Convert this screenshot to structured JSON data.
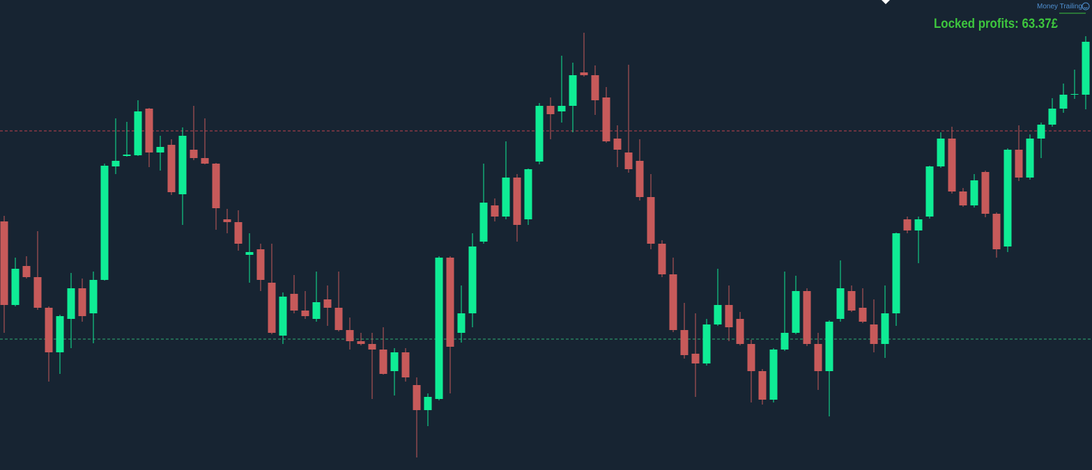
{
  "chart_data": {
    "type": "candlestick",
    "annotations": [
      "Money Trailing",
      "Locked profits: 63.37£"
    ],
    "up_color": "#0fec95",
    "down_color": "#c75a5a",
    "ylim": [
      0,
      675
    ],
    "levels": [
      {
        "value": 487,
        "color": "#c2424e"
      },
      {
        "value": 188,
        "color": "#2fae74"
      }
    ],
    "ohlc": [
      [
        357,
        365,
        197,
        237
      ],
      [
        237,
        305,
        235,
        289
      ],
      [
        293,
        307,
        275,
        277
      ],
      [
        277,
        343,
        230,
        233
      ],
      [
        233,
        235,
        127,
        169
      ],
      [
        169,
        223,
        138,
        221
      ],
      [
        217,
        283,
        175,
        261
      ],
      [
        261,
        275,
        213,
        221
      ],
      [
        225,
        285,
        182,
        273
      ],
      [
        273,
        440,
        272,
        437
      ],
      [
        436,
        505,
        425,
        444
      ],
      [
        451,
        500,
        450,
        453
      ],
      [
        452,
        531,
        451,
        515
      ],
      [
        519,
        520,
        435,
        456
      ],
      [
        456,
        480,
        430,
        464
      ],
      [
        467,
        475,
        395,
        399
      ],
      [
        396,
        492,
        352,
        480
      ],
      [
        460,
        523,
        445,
        448
      ],
      [
        448,
        505,
        439,
        440
      ],
      [
        440,
        441,
        345,
        376
      ],
      [
        360,
        375,
        340,
        356
      ],
      [
        356,
        373,
        315,
        325
      ],
      [
        309,
        340,
        269,
        313
      ],
      [
        317,
        325,
        257,
        273
      ],
      [
        269,
        325,
        195,
        197
      ],
      [
        193,
        255,
        181,
        249
      ],
      [
        253,
        280,
        225,
        229
      ],
      [
        229,
        257,
        217,
        221
      ],
      [
        217,
        285,
        213,
        241
      ],
      [
        245,
        265,
        207,
        233
      ],
      [
        233,
        285,
        199,
        201
      ],
      [
        201,
        219,
        173,
        185
      ],
      [
        185,
        197,
        179,
        181
      ],
      [
        181,
        197,
        102,
        173
      ],
      [
        173,
        205,
        137,
        138
      ],
      [
        142,
        175,
        107,
        169
      ],
      [
        169,
        175,
        127,
        133
      ],
      [
        122,
        133,
        18,
        86
      ],
      [
        86,
        110,
        63,
        105
      ],
      [
        102,
        307,
        100,
        305
      ],
      [
        305,
        307,
        110,
        177
      ],
      [
        197,
        265,
        183,
        225
      ],
      [
        225,
        340,
        205,
        321
      ],
      [
        328,
        440,
        325,
        384
      ],
      [
        380,
        390,
        357,
        364
      ],
      [
        364,
        472,
        360,
        420
      ],
      [
        420,
        425,
        328,
        352
      ],
      [
        360,
        433,
        352,
        432
      ],
      [
        443,
        527,
        439,
        523
      ],
      [
        523,
        535,
        475,
        511
      ],
      [
        515,
        595,
        499,
        523
      ],
      [
        523,
        585,
        485,
        567
      ],
      [
        571,
        628,
        565,
        567
      ],
      [
        567,
        581,
        510,
        531
      ],
      [
        535,
        550,
        470,
        472
      ],
      [
        476,
        495,
        435,
        460
      ],
      [
        456,
        582,
        427,
        432
      ],
      [
        444,
        475,
        387,
        392
      ],
      [
        392,
        425,
        317,
        325
      ],
      [
        325,
        330,
        277,
        281
      ],
      [
        281,
        305,
        198,
        201
      ],
      [
        201,
        240,
        160,
        165
      ],
      [
        167,
        225,
        105,
        153
      ],
      [
        153,
        217,
        150,
        209
      ],
      [
        209,
        289,
        207,
        237
      ],
      [
        237,
        265,
        185,
        205
      ],
      [
        217,
        227,
        179,
        181
      ],
      [
        181,
        187,
        97,
        142
      ],
      [
        142,
        145,
        94,
        101
      ],
      [
        101,
        175,
        97,
        173
      ],
      [
        173,
        285,
        171,
        197
      ],
      [
        197,
        279,
        195,
        257
      ],
      [
        257,
        261,
        178,
        181
      ],
      [
        181,
        197,
        115,
        142
      ],
      [
        142,
        215,
        77,
        213
      ],
      [
        217,
        301,
        213,
        261
      ],
      [
        257,
        265,
        227,
        229
      ],
      [
        233,
        261,
        211,
        213
      ],
      [
        209,
        245,
        169,
        181
      ],
      [
        181,
        265,
        161,
        225
      ],
      [
        225,
        341,
        207,
        340
      ],
      [
        360,
        364,
        340,
        344
      ],
      [
        344,
        364,
        297,
        360
      ],
      [
        364,
        437,
        361,
        436
      ],
      [
        436,
        485,
        434,
        476
      ],
      [
        476,
        493,
        397,
        400
      ],
      [
        400,
        405,
        378,
        380
      ],
      [
        380,
        425,
        377,
        416
      ],
      [
        428,
        430,
        363,
        368
      ],
      [
        368,
        370,
        305,
        317
      ],
      [
        321,
        462,
        313,
        460
      ],
      [
        460,
        495,
        415,
        420
      ],
      [
        420,
        482,
        417,
        476
      ],
      [
        476,
        499,
        448,
        496
      ],
      [
        496,
        534,
        493,
        519
      ],
      [
        519,
        555,
        513,
        539
      ],
      [
        539,
        575,
        533,
        540
      ],
      [
        539,
        623,
        518,
        615
      ]
    ]
  }
}
